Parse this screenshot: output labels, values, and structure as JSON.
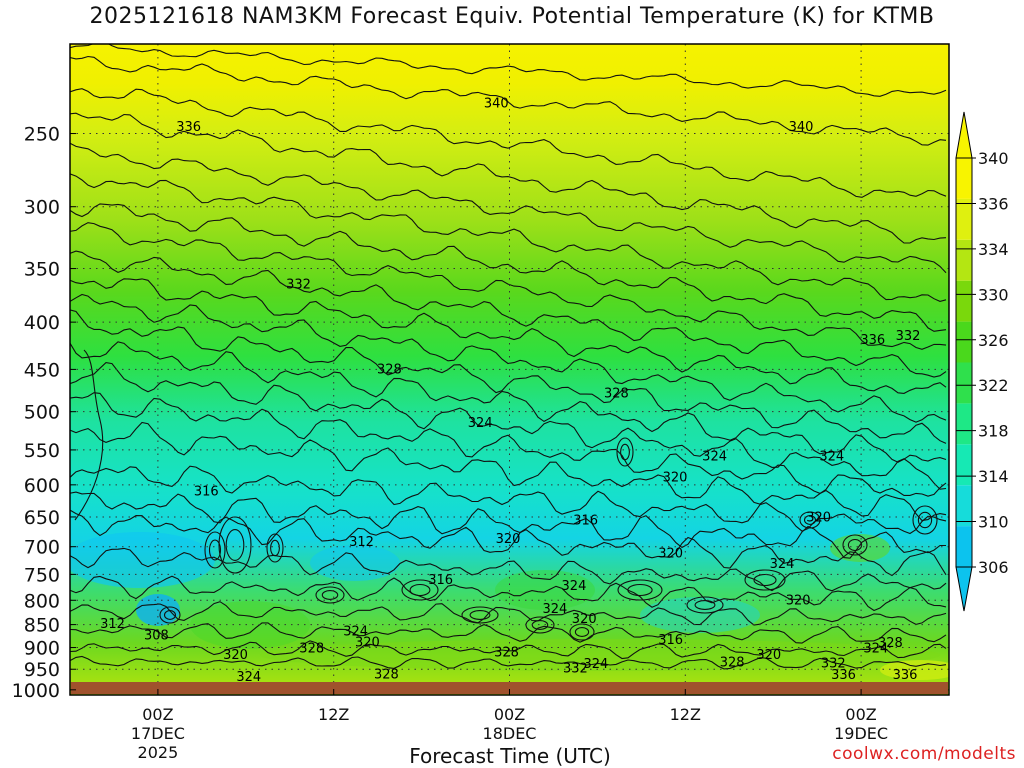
{
  "title": "2025121618 NAM3KM Forecast Equiv. Potential Temperature (K) for KTMB",
  "credit": "coolwx.com/modelts",
  "chart_data": {
    "type": "heatmap",
    "title": "2025121618 NAM3KM Forecast Equiv. Potential Temperature (K) for KTMB",
    "xlabel": "Forecast Time (UTC)",
    "ylabel": "",
    "y_axis": {
      "ticks": [
        250,
        300,
        350,
        400,
        450,
        500,
        550,
        600,
        650,
        700,
        750,
        800,
        850,
        900,
        950,
        1000
      ],
      "range": [
        200,
        1013
      ],
      "scale": "log"
    },
    "x_axis": {
      "ticks": [
        {
          "hour": 6,
          "label": [
            "00Z",
            "17DEC",
            "2025"
          ]
        },
        {
          "hour": 18,
          "label": [
            "12Z"
          ]
        },
        {
          "hour": 30,
          "label": [
            "00Z",
            "18DEC"
          ]
        },
        {
          "hour": 42,
          "label": [
            "12Z"
          ]
        },
        {
          "hour": 54,
          "label": [
            "00Z",
            "19DEC"
          ]
        }
      ],
      "range": [
        0,
        60
      ]
    },
    "colorbar": {
      "labels": [
        306,
        310,
        314,
        318,
        322,
        326,
        330,
        334,
        336,
        340
      ],
      "colors": [
        "#0cc3ee",
        "#16dcda",
        "#16e9b4",
        "#1ee886",
        "#2fe04c",
        "#4ad81c",
        "#7ad80c",
        "#b4e612",
        "#dff00f",
        "#f8f400"
      ]
    },
    "contour_labels": [
      {
        "value": 340,
        "t": 29.1,
        "p": 232
      },
      {
        "value": 340,
        "t": 49.9,
        "p": 246
      },
      {
        "value": 336,
        "t": 8.1,
        "p": 246
      },
      {
        "value": 336,
        "t": 54.8,
        "p": 418
      },
      {
        "value": 336,
        "t": 52.8,
        "p": 964
      },
      {
        "value": 336,
        "t": 57.0,
        "p": 964
      },
      {
        "value": 332,
        "t": 15.6,
        "p": 364
      },
      {
        "value": 332,
        "t": 57.2,
        "p": 414
      },
      {
        "value": 332,
        "t": 34.5,
        "p": 948
      },
      {
        "value": 332,
        "t": 52.1,
        "p": 937
      },
      {
        "value": 328,
        "t": 21.8,
        "p": 450
      },
      {
        "value": 328,
        "t": 37.3,
        "p": 478
      },
      {
        "value": 328,
        "t": 16.5,
        "p": 902
      },
      {
        "value": 328,
        "t": 21.6,
        "p": 962
      },
      {
        "value": 328,
        "t": 29.8,
        "p": 911
      },
      {
        "value": 328,
        "t": 45.2,
        "p": 934
      },
      {
        "value": 328,
        "t": 56.0,
        "p": 890
      },
      {
        "value": 324,
        "t": 28.0,
        "p": 514
      },
      {
        "value": 324,
        "t": 44.0,
        "p": 559
      },
      {
        "value": 324,
        "t": 52.0,
        "p": 559
      },
      {
        "value": 324,
        "t": 19.5,
        "p": 865
      },
      {
        "value": 324,
        "t": 34.4,
        "p": 772
      },
      {
        "value": 324,
        "t": 33.1,
        "p": 818
      },
      {
        "value": 324,
        "t": 12.2,
        "p": 968
      },
      {
        "value": 324,
        "t": 35.9,
        "p": 938
      },
      {
        "value": 324,
        "t": 55.0,
        "p": 902
      },
      {
        "value": 324,
        "t": 48.6,
        "p": 731
      },
      {
        "value": 320,
        "t": 41.3,
        "p": 589
      },
      {
        "value": 320,
        "t": 29.9,
        "p": 687
      },
      {
        "value": 320,
        "t": 41.0,
        "p": 712
      },
      {
        "value": 320,
        "t": 51.1,
        "p": 651
      },
      {
        "value": 320,
        "t": 35.1,
        "p": 838
      },
      {
        "value": 320,
        "t": 11.3,
        "p": 917
      },
      {
        "value": 320,
        "t": 20.3,
        "p": 889
      },
      {
        "value": 320,
        "t": 49.7,
        "p": 800
      },
      {
        "value": 320,
        "t": 47.7,
        "p": 917
      },
      {
        "value": 316,
        "t": 9.3,
        "p": 610
      },
      {
        "value": 316,
        "t": 35.2,
        "p": 656
      },
      {
        "value": 316,
        "t": 25.3,
        "p": 761
      },
      {
        "value": 316,
        "t": 41.0,
        "p": 883
      },
      {
        "value": 312,
        "t": 19.9,
        "p": 692
      },
      {
        "value": 312,
        "t": 2.9,
        "p": 849
      },
      {
        "value": 308,
        "t": 5.9,
        "p": 873
      }
    ]
  }
}
